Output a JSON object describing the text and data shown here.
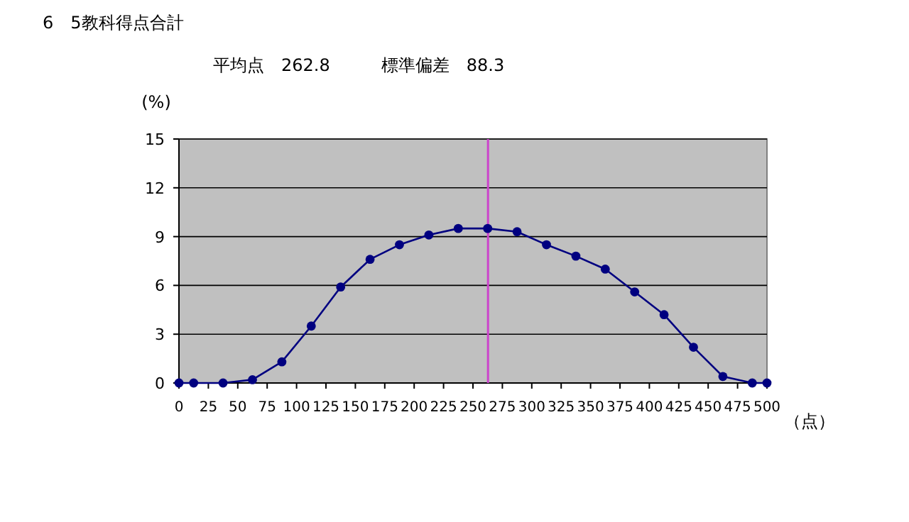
{
  "chart_data": {
    "type": "line",
    "title": "6　5教科得点合計",
    "subtitle": "平均点　262.8　　　標準偏差　88.3",
    "ylabel": "(%)",
    "xlabel": "（点）",
    "x": [
      0,
      12.5,
      37.5,
      62.5,
      87.5,
      112.5,
      137.5,
      162.5,
      187.5,
      212.5,
      237.5,
      262.5,
      287.5,
      312.5,
      337.5,
      362.5,
      387.5,
      412.5,
      437.5,
      462.5,
      487.5,
      500
    ],
    "series": [
      {
        "color": "#000080",
        "values": [
          0,
          0,
          0,
          0.2,
          1.3,
          3.5,
          5.9,
          7.6,
          8.5,
          9.1,
          9.5,
          9.5,
          9.3,
          8.5,
          7.8,
          7.0,
          5.6,
          4.2,
          2.2,
          0.4,
          0,
          0
        ]
      }
    ],
    "xlim": [
      0,
      500
    ],
    "xticks": [
      0,
      25,
      50,
      75,
      100,
      125,
      150,
      175,
      200,
      225,
      250,
      275,
      300,
      325,
      350,
      375,
      400,
      425,
      450,
      475,
      500
    ],
    "ylim": [
      0,
      15
    ],
    "yticks": [
      0,
      3,
      6,
      9,
      12,
      15
    ],
    "grid": "y",
    "marker": "circle",
    "line_style": "solid",
    "ref_lines": [
      {
        "axis": "x",
        "value": 262.8,
        "color": "#cc44cc"
      }
    ]
  }
}
